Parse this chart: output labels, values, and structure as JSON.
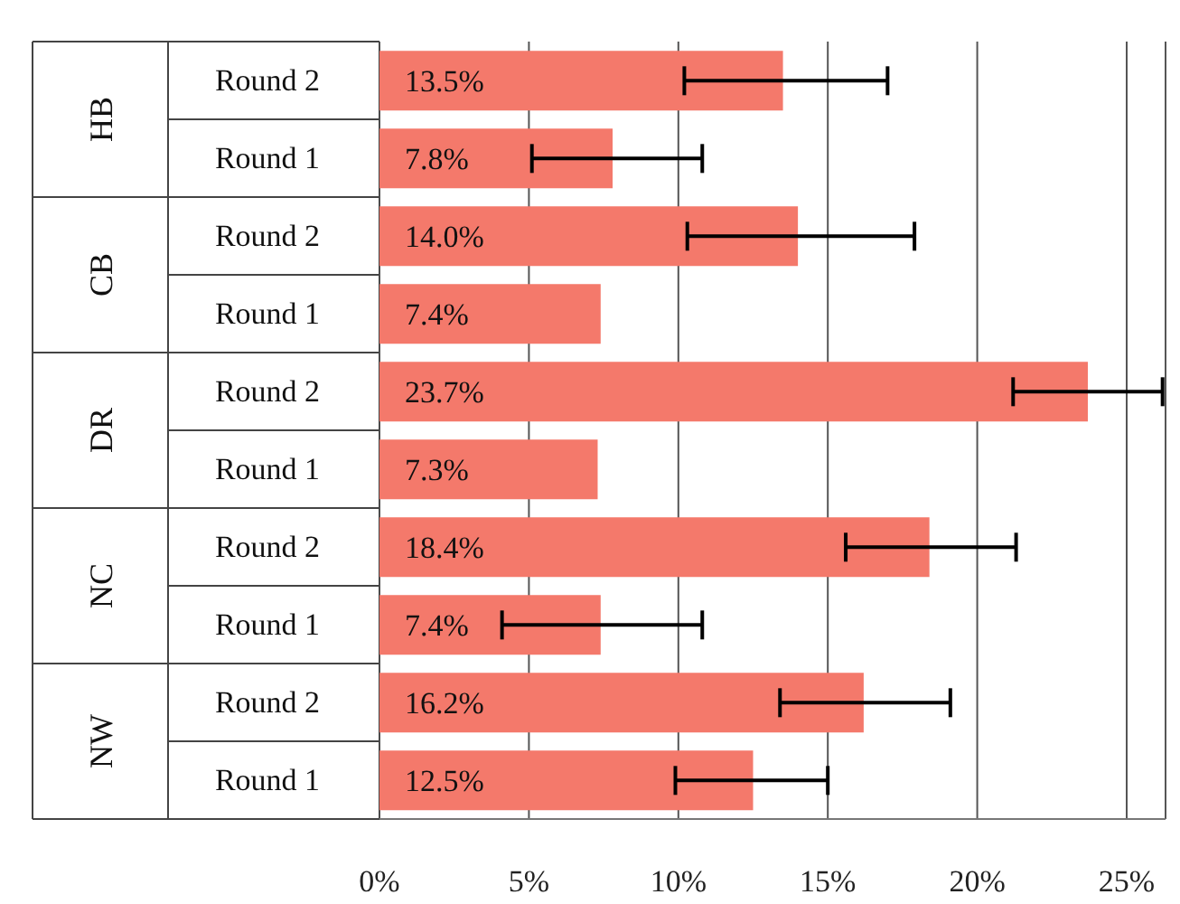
{
  "chart_data": {
    "type": "bar",
    "orientation": "horizontal",
    "categories": [
      "Round 2",
      "Round 1",
      "Round 2",
      "Round 1",
      "Round 2",
      "Round 1",
      "Round 2",
      "Round 1",
      "Round 2",
      "Round 1"
    ],
    "annotations": [
      "HB",
      "CB",
      "DR",
      "NC",
      "NW"
    ],
    "values": [
      13.5,
      7.8,
      14.0,
      7.4,
      23.7,
      7.3,
      18.4,
      7.4,
      16.2,
      12.5
    ],
    "value_labels": [
      "13.5%",
      "7.8%",
      "14.0%",
      "7.4%",
      "23.7%",
      "7.3%",
      "18.4%",
      "7.4%",
      "16.2%",
      "12.5%"
    ],
    "errors": [
      [
        10.2,
        17.0
      ],
      [
        5.1,
        10.8
      ],
      [
        10.3,
        17.9
      ],
      null,
      [
        21.2,
        26.2
      ],
      null,
      [
        15.6,
        21.3
      ],
      [
        4.1,
        10.8
      ],
      [
        13.4,
        19.1
      ],
      [
        9.9,
        15.0
      ]
    ],
    "color": "#f4796b",
    "xlim": [
      0,
      26.3
    ],
    "xticks": [
      {
        "value": 0,
        "label": "0%"
      },
      {
        "value": 5,
        "label": "5%"
      },
      {
        "value": 10,
        "label": "10%"
      },
      {
        "value": 15,
        "label": "15%"
      },
      {
        "value": 20,
        "label": "20%"
      },
      {
        "value": 25,
        "label": "25%"
      }
    ],
    "grid": "x"
  }
}
